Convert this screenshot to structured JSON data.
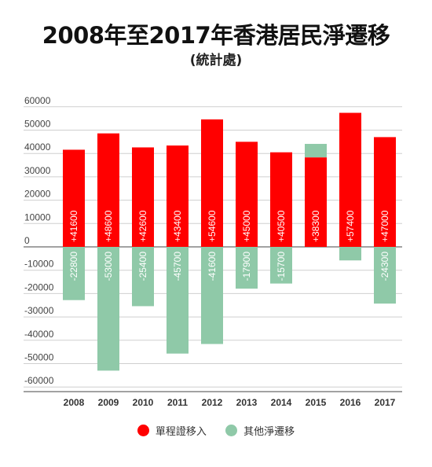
{
  "chart_data": {
    "type": "bar",
    "title": "2008年至2017年香港居民淨遷移",
    "subtitle": "(統計處)",
    "categories": [
      "2008",
      "2009",
      "2010",
      "2011",
      "2012",
      "2013",
      "2014",
      "2015",
      "2016",
      "2017"
    ],
    "series": [
      {
        "name": "單程證移入",
        "color": "#ff0000",
        "values": [
          41600,
          48600,
          42600,
          43400,
          54600,
          45000,
          40500,
          38300,
          57400,
          47000
        ],
        "labels": [
          "+41600",
          "+48600",
          "+42600",
          "+43400",
          "+54600",
          "+45000",
          "+40500",
          "+38300",
          "",
          ""
        ]
      },
      {
        "name": "其他淨遷移",
        "color": "#8fc9a8",
        "values": [
          -22800,
          -53000,
          -25400,
          -45700,
          -41600,
          -17900,
          -15700,
          5800,
          -5800,
          -24300
        ],
        "labels": [
          "-22800",
          "-53000",
          "-25400",
          "-45700",
          "-41600",
          "-17900",
          "-15700",
          "",
          "",
          ""
        ]
      }
    ],
    "extra_labels": {
      "8": [
        "+57400"
      ],
      "9": [
        "+47000",
        "-24300"
      ]
    },
    "yticks": [
      60000,
      50000,
      40000,
      30000,
      20000,
      10000,
      0,
      -10000,
      -20000,
      -30000,
      -40000,
      -50000,
      -60000
    ],
    "ylim": [
      -62000,
      62000
    ],
    "grid": true,
    "legend_position": "bottom"
  }
}
